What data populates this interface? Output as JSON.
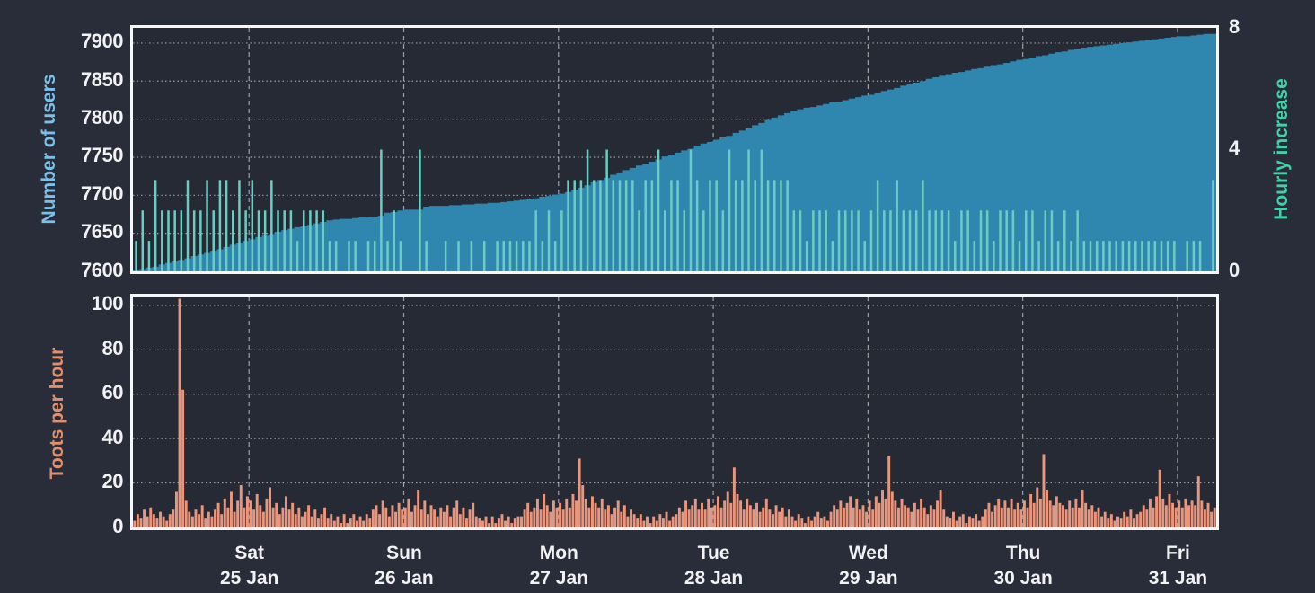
{
  "colors": {
    "page_background": "#282d39",
    "plot_background": "#262a34",
    "plot_border": "#f7f7f7",
    "grid": "rgba(255,255,255,0.55)",
    "tick_text": "#f2f2f4",
    "users_area": "#2f87af",
    "increase_bars": "#6acdc3",
    "toots_bars": "#ea967d",
    "label_users": "#7cc0e8",
    "label_increase": "#41d1a7",
    "label_toots": "#e28f6e"
  },
  "x_axis": {
    "hours_total": 168,
    "gridline_hours": [
      18,
      42,
      66,
      90,
      114,
      138,
      162
    ],
    "day_labels": [
      {
        "day": "Sat",
        "date": "25 Jan"
      },
      {
        "day": "Sun",
        "date": "26 Jan"
      },
      {
        "day": "Mon",
        "date": "27 Jan"
      },
      {
        "day": "Tue",
        "date": "28 Jan"
      },
      {
        "day": "Wed",
        "date": "29 Jan"
      },
      {
        "day": "Thu",
        "date": "30 Jan"
      },
      {
        "day": "Fri",
        "date": "31 Jan"
      }
    ]
  },
  "chart_data": [
    {
      "type": "area",
      "name": "users-and-hourly-increase",
      "ylabel_left": "Number of users",
      "ylabel_right": "Hourly increase",
      "ylim_left": [
        7600,
        7920
      ],
      "yticks_left": [
        7600,
        7650,
        7700,
        7750,
        7800,
        7850,
        7900
      ],
      "ylim_right": [
        0,
        8
      ],
      "yticks_right": [
        0,
        4,
        8
      ],
      "grid": "on",
      "users_start": 7602,
      "users_end": 7915,
      "hourly_increase": [
        1,
        2,
        1,
        3,
        2,
        2,
        2,
        2,
        3,
        2,
        2,
        3,
        2,
        3,
        3,
        2,
        3,
        2,
        3,
        2,
        2,
        3,
        2,
        2,
        2,
        1,
        2,
        2,
        2,
        2,
        1,
        1,
        0,
        1,
        1,
        0,
        1,
        1,
        4,
        1,
        2,
        1,
        0,
        0,
        4,
        1,
        0,
        0,
        1,
        0,
        1,
        0,
        1,
        0,
        1,
        0,
        1,
        1,
        1,
        1,
        1,
        1,
        2,
        1,
        2,
        1,
        2,
        3,
        3,
        3,
        4,
        3,
        3,
        4,
        3,
        3,
        3,
        3,
        2,
        3,
        3,
        4,
        2,
        3,
        3,
        2,
        4,
        3,
        2,
        3,
        3,
        2,
        4,
        3,
        3,
        4,
        3,
        4,
        3,
        3,
        3,
        3,
        2,
        2,
        1,
        2,
        2,
        2,
        1,
        2,
        2,
        2,
        2,
        1,
        2,
        3,
        2,
        2,
        3,
        2,
        2,
        2,
        3,
        2,
        2,
        2,
        2,
        1,
        2,
        2,
        1,
        2,
        2,
        1,
        2,
        2,
        2,
        1,
        2,
        2,
        1,
        2,
        2,
        1,
        2,
        1,
        2,
        1,
        1,
        1,
        1,
        1,
        1,
        1,
        1,
        1,
        1,
        1,
        1,
        1,
        1,
        1,
        0,
        1,
        1,
        1,
        0,
        3
      ]
    },
    {
      "type": "bar",
      "name": "toots-per-hour",
      "ylabel": "Toots per hour",
      "ylim": [
        0,
        104
      ],
      "yticks": [
        0,
        20,
        40,
        60,
        80,
        100
      ],
      "grid": "on",
      "bins_per_hour": 2,
      "values": [
        3,
        6,
        4,
        8,
        5,
        9,
        6,
        4,
        7,
        5,
        3,
        6,
        8,
        16,
        103,
        62,
        12,
        7,
        5,
        8,
        6,
        10,
        4,
        7,
        5,
        8,
        11,
        6,
        13,
        9,
        16,
        7,
        12,
        19,
        9,
        14,
        12,
        8,
        15,
        10,
        7,
        13,
        18,
        9,
        11,
        6,
        9,
        14,
        8,
        11,
        6,
        9,
        5,
        7,
        10,
        5,
        8,
        4,
        6,
        9,
        4,
        6,
        3,
        5,
        2,
        6,
        2,
        4,
        6,
        3,
        5,
        3,
        6,
        4,
        8,
        10,
        6,
        12,
        9,
        5,
        10,
        7,
        11,
        8,
        9,
        13,
        7,
        10,
        17,
        8,
        12,
        6,
        10,
        8,
        5,
        9,
        7,
        10,
        5,
        9,
        12,
        6,
        9,
        4,
        8,
        11,
        5,
        4,
        3,
        5,
        2,
        5,
        2,
        4,
        6,
        3,
        5,
        2,
        4,
        5,
        5,
        8,
        11,
        7,
        9,
        13,
        8,
        15,
        10,
        7,
        12,
        9,
        11,
        8,
        13,
        9,
        15,
        12,
        31,
        19,
        13,
        9,
        14,
        11,
        9,
        13,
        8,
        10,
        6,
        9,
        12,
        7,
        10,
        5,
        8,
        6,
        4,
        6,
        3,
        5,
        2,
        5,
        3,
        6,
        4,
        7,
        3,
        5,
        6,
        9,
        7,
        12,
        8,
        10,
        13,
        8,
        11,
        8,
        13,
        9,
        10,
        14,
        9,
        12,
        16,
        11,
        27,
        15,
        12,
        8,
        13,
        10,
        8,
        11,
        7,
        9,
        13,
        8,
        6,
        10,
        7,
        9,
        5,
        8,
        5,
        3,
        6,
        4,
        2,
        5,
        3,
        5,
        7,
        4,
        5,
        3,
        7,
        10,
        8,
        12,
        9,
        11,
        14,
        9,
        13,
        8,
        10,
        7,
        12,
        8,
        14,
        11,
        17,
        13,
        32,
        16,
        12,
        9,
        13,
        10,
        9,
        7,
        11,
        8,
        13,
        9,
        6,
        10,
        8,
        12,
        17,
        8,
        5,
        4,
        7,
        3,
        5,
        6,
        2,
        5,
        4,
        6,
        3,
        5,
        8,
        11,
        7,
        10,
        13,
        9,
        12,
        9,
        13,
        8,
        11,
        8,
        12,
        9,
        15,
        11,
        18,
        13,
        33,
        17,
        12,
        10,
        14,
        11,
        10,
        8,
        12,
        9,
        13,
        9,
        17,
        11,
        8,
        10,
        7,
        9,
        5,
        7,
        4,
        6,
        3,
        5,
        4,
        7,
        5,
        8,
        4,
        6,
        7,
        10,
        8,
        13,
        9,
        14,
        26,
        13,
        10,
        15,
        11,
        9,
        12,
        9,
        13,
        10,
        12,
        10,
        23,
        12,
        8,
        11,
        7,
        9
      ]
    }
  ]
}
